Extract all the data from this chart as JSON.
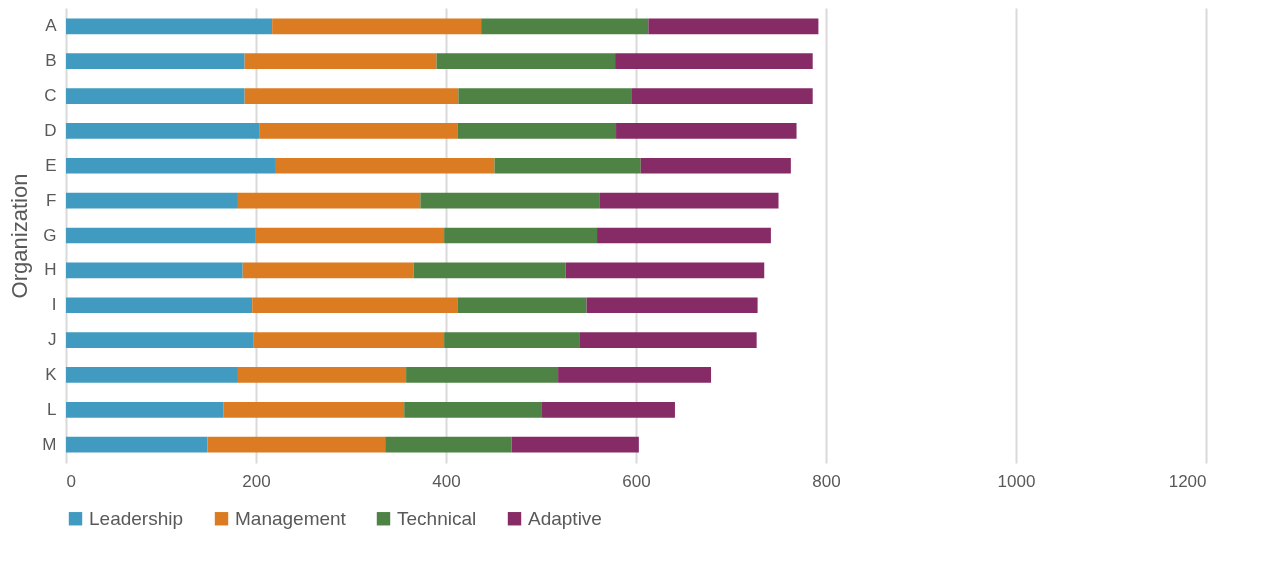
{
  "chart_data": {
    "type": "bar",
    "orientation": "horizontal",
    "stacked": true,
    "ylabel": "Organization",
    "categories": [
      "A",
      "B",
      "C",
      "D",
      "E",
      "F",
      "G",
      "H",
      "I",
      "J",
      "K",
      "L",
      "M"
    ],
    "series": [
      {
        "name": "Leadership",
        "color": "#419bc0",
        "values": [
          217,
          188,
          188,
          204,
          220,
          181,
          199,
          186,
          196,
          197,
          181,
          166,
          149
        ]
      },
      {
        "name": "Management",
        "color": "#dc7c22",
        "values": [
          220,
          202,
          225,
          208,
          231,
          192,
          199,
          180,
          216,
          201,
          177,
          190,
          187
        ]
      },
      {
        "name": "Technical",
        "color": "#4f8345",
        "values": [
          176,
          188,
          182,
          167,
          154,
          189,
          161,
          160,
          136,
          143,
          160,
          145,
          133
        ]
      },
      {
        "name": "Adaptive",
        "color": "#862b66",
        "values": [
          179,
          208,
          191,
          190,
          158,
          188,
          183,
          209,
          180,
          186,
          161,
          140,
          134
        ]
      }
    ],
    "xlim": [
      0,
      1200
    ],
    "xticks": [
      0,
      200,
      400,
      600,
      800,
      1000,
      1200
    ],
    "grid": "x",
    "legend": "bottom"
  }
}
